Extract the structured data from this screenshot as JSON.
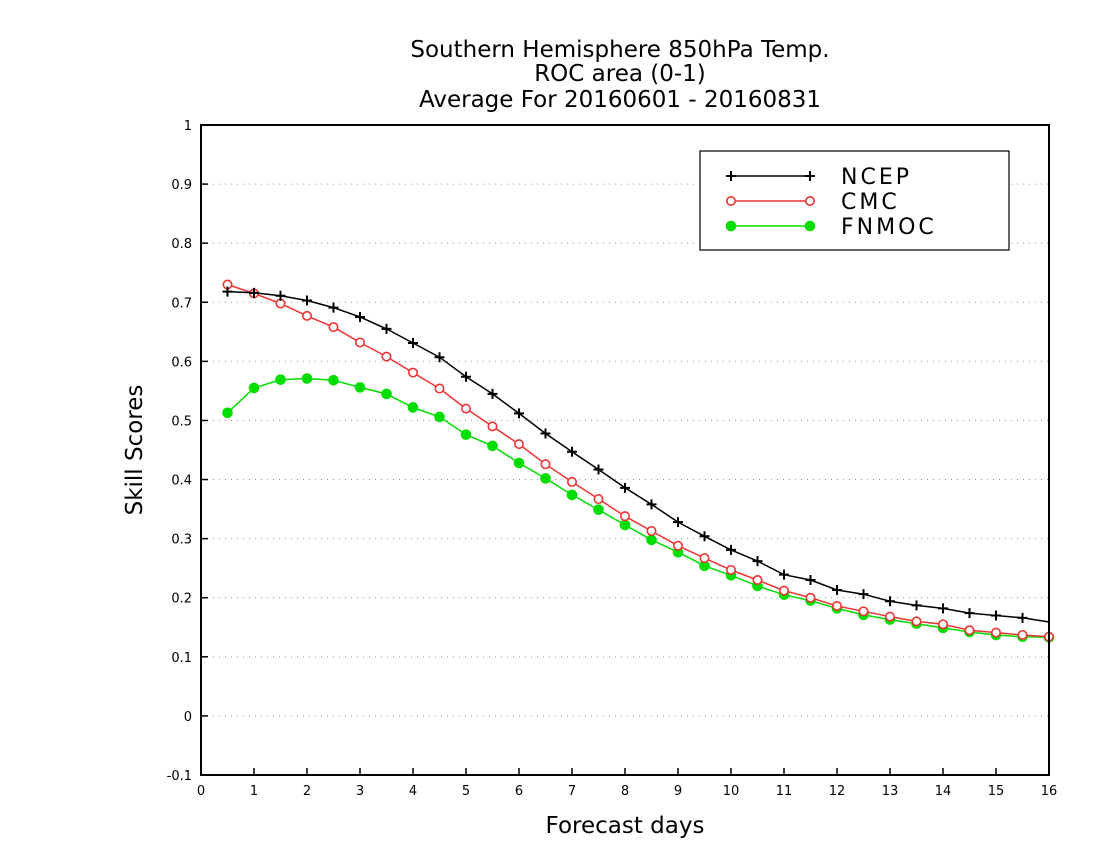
{
  "chart_data": {
    "type": "line",
    "title": [
      "Southern Hemisphere 850hPa Temp.",
      "ROC area (0-1)",
      "Average For 20160601 - 20160831"
    ],
    "xlabel": "Forecast days",
    "ylabel": "Skill Scores",
    "xlim": [
      0,
      16
    ],
    "ylim": [
      -0.1,
      1
    ],
    "xticks": [
      "0",
      "1",
      "2",
      "3",
      "4",
      "5",
      "6",
      "7",
      "8",
      "9",
      "10",
      "11",
      "12",
      "13",
      "14",
      "15",
      "16"
    ],
    "yticks": [
      "-0.1",
      "0",
      "0.1",
      "0.2",
      "0.3",
      "0.4",
      "0.5",
      "0.6",
      "0.7",
      "0.8",
      "0.9",
      "1"
    ],
    "grid": "horizontal dotted",
    "legend_position": "top-right",
    "x": [
      0.5,
      1,
      1.5,
      2,
      2.5,
      3,
      3.5,
      4,
      4.5,
      5,
      5.5,
      6,
      6.5,
      7,
      7.5,
      8,
      8.5,
      9,
      9.5,
      10,
      10.5,
      11,
      11.5,
      12,
      12.5,
      13,
      13.5,
      14,
      14.5,
      15,
      15.5,
      16
    ],
    "series": [
      {
        "name": "NCEP",
        "color": "#000000",
        "marker": "plus",
        "values": [
          0.718,
          0.716,
          0.711,
          0.703,
          0.691,
          0.675,
          0.655,
          0.631,
          0.607,
          0.574,
          0.545,
          0.512,
          0.478,
          0.447,
          0.417,
          0.386,
          0.358,
          0.328,
          0.304,
          0.281,
          0.262,
          0.239,
          0.23,
          0.213,
          0.206,
          0.194,
          0.187,
          0.182,
          0.174,
          0.17,
          0.166,
          0.159
        ]
      },
      {
        "name": "CMC",
        "color": "#ee3333",
        "marker": "open-circle",
        "values": [
          0.73,
          0.715,
          0.698,
          0.677,
          0.658,
          0.632,
          0.608,
          0.581,
          0.554,
          0.52,
          0.49,
          0.46,
          0.426,
          0.396,
          0.367,
          0.338,
          0.313,
          0.288,
          0.267,
          0.247,
          0.23,
          0.212,
          0.2,
          0.186,
          0.177,
          0.168,
          0.16,
          0.155,
          0.145,
          0.141,
          0.137,
          0.134
        ]
      },
      {
        "name": "FNMOC",
        "color": "#00dd00",
        "marker": "filled-circle",
        "values": [
          0.513,
          0.555,
          0.569,
          0.571,
          0.568,
          0.556,
          0.545,
          0.522,
          0.506,
          0.476,
          0.457,
          0.428,
          0.402,
          0.374,
          0.349,
          0.323,
          0.298,
          0.277,
          0.254,
          0.238,
          0.22,
          0.205,
          0.195,
          0.182,
          0.171,
          0.163,
          0.156,
          0.149,
          0.142,
          0.137,
          0.134,
          0.133
        ]
      }
    ]
  }
}
